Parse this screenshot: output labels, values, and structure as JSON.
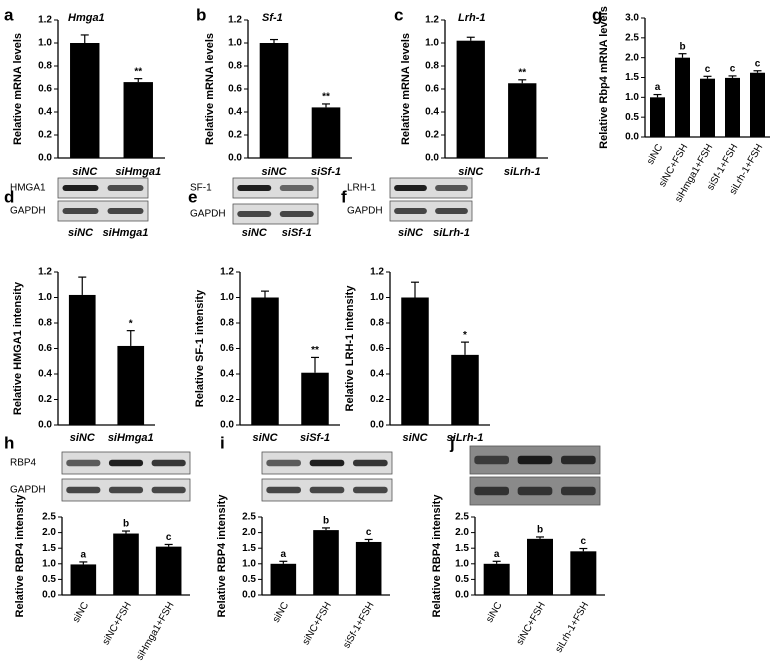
{
  "chart_data": [
    {
      "type": "bar",
      "panel": "a",
      "title": "Hmga1",
      "ylabel": "Relative mRNA levels",
      "categories": [
        "siNC",
        "siHmga1"
      ],
      "values": [
        1.0,
        0.66
      ],
      "errors": [
        0.07,
        0.03
      ],
      "annotations": [
        null,
        "**"
      ],
      "color": "#000000",
      "ylim": [
        0,
        1.2
      ],
      "yticks": [
        {
          "value": 0,
          "label": "0.0"
        },
        0.2,
        0.4,
        0.6,
        0.8,
        {
          "value": 1,
          "label": "1.0"
        },
        1.2
      ]
    },
    {
      "type": "bar",
      "panel": "b",
      "title": "Sf-1",
      "ylabel": "Relative mRNA levels",
      "categories": [
        "siNC",
        "siSf-1"
      ],
      "values": [
        1.0,
        0.44
      ],
      "errors": [
        0.03,
        0.03
      ],
      "annotations": [
        null,
        "**"
      ],
      "color": "#000000",
      "ylim": [
        0,
        1.2
      ],
      "yticks": [
        {
          "value": 0,
          "label": "0.0"
        },
        0.2,
        0.4,
        0.6,
        0.8,
        {
          "value": 1,
          "label": "1.0"
        },
        1.2
      ]
    },
    {
      "type": "bar",
      "panel": "c",
      "title": "Lrh-1",
      "ylabel": "Relative mRNA levels",
      "categories": [
        "siNC",
        "siLrh-1"
      ],
      "values": [
        1.02,
        0.65
      ],
      "errors": [
        0.03,
        0.03
      ],
      "annotations": [
        null,
        "**"
      ],
      "color": "#000000",
      "ylim": [
        0,
        1.2
      ],
      "yticks": [
        {
          "value": 0,
          "label": "0.0"
        },
        0.2,
        0.4,
        0.6,
        0.8,
        {
          "value": 1,
          "label": "1.0"
        },
        1.2
      ]
    },
    {
      "type": "bar",
      "panel": "g",
      "ylabel": "Relative Rbp4 mRNA levels",
      "categories": [
        "siNC",
        "siNC+FSH",
        "siHmga1+FSH",
        "siSf-1+FSH",
        "siLrh-1+FSH"
      ],
      "values": [
        1.0,
        2.0,
        1.47,
        1.49,
        1.62
      ],
      "errors": [
        0.07,
        0.1,
        0.06,
        0.05,
        0.05
      ],
      "annotations": [
        "a",
        "b",
        "c",
        "c",
        "c"
      ],
      "color": "#000000",
      "ylim": [
        0,
        3
      ],
      "yticks": [
        {
          "value": 0,
          "label": "0.0"
        },
        0.5,
        {
          "value": 1,
          "label": "1.0"
        },
        1.5,
        {
          "value": 2,
          "label": "2.0"
        },
        2.5,
        {
          "value": 3,
          "label": "3.0"
        }
      ]
    },
    {
      "type": "bar",
      "panel": "d",
      "blot_rows": [
        "HMGA1",
        "GAPDH"
      ],
      "blot_lanes": [
        "siNC",
        "siHmga1"
      ],
      "ylabel": "Relative HMGA1 intensity",
      "categories": [
        "siNC",
        "siHmga1"
      ],
      "values": [
        1.02,
        0.62
      ],
      "errors": [
        0.14,
        0.12
      ],
      "annotations": [
        null,
        "*"
      ],
      "color": "#000000",
      "ylim": [
        0,
        1.2
      ],
      "yticks": [
        {
          "value": 0,
          "label": "0.0"
        },
        0.2,
        0.4,
        0.6,
        0.8,
        {
          "value": 1,
          "label": "1.0"
        },
        1.2
      ]
    },
    {
      "type": "bar",
      "panel": "e",
      "blot_rows": [
        "SF-1",
        "GAPDH"
      ],
      "blot_lanes": [
        "siNC",
        "siSf-1"
      ],
      "ylabel": "Relative SF-1 intensity",
      "categories": [
        "siNC",
        "siSf-1"
      ],
      "values": [
        1.0,
        0.41
      ],
      "errors": [
        0.05,
        0.12
      ],
      "annotations": [
        null,
        "**"
      ],
      "color": "#000000",
      "ylim": [
        0,
        1.2
      ],
      "yticks": [
        {
          "value": 0,
          "label": "0.0"
        },
        0.2,
        0.4,
        0.6,
        0.8,
        {
          "value": 1,
          "label": "1.0"
        },
        1.2
      ]
    },
    {
      "type": "bar",
      "panel": "f",
      "blot_rows": [
        "LRH-1",
        "GAPDH"
      ],
      "blot_lanes": [
        "siNC",
        "siLrh-1"
      ],
      "ylabel": "Relative LRH-1 intensity",
      "categories": [
        "siNC",
        "siLrh-1"
      ],
      "values": [
        1.0,
        0.55
      ],
      "errors": [
        0.12,
        0.1
      ],
      "annotations": [
        null,
        "*"
      ],
      "color": "#000000",
      "ylim": [
        0,
        1.2
      ],
      "yticks": [
        {
          "value": 0,
          "label": "0.0"
        },
        0.2,
        0.4,
        0.6,
        0.8,
        {
          "value": 1,
          "label": "1.0"
        },
        1.2
      ]
    },
    {
      "type": "bar",
      "panel": "h",
      "blot_rows": [
        "RBP4",
        "GAPDH"
      ],
      "ylabel": "Relative RBP4 intensity",
      "categories": [
        "siNC",
        "siNC+FSH",
        "siHmga1+FSH"
      ],
      "values": [
        0.98,
        1.97,
        1.55
      ],
      "errors": [
        0.08,
        0.08,
        0.07
      ],
      "annotations": [
        "a",
        "b",
        "c"
      ],
      "color": "#000000",
      "ylim": [
        0,
        2.5
      ],
      "yticks": [
        {
          "value": 0,
          "label": "0.0"
        },
        0.5,
        {
          "value": 1,
          "label": "1.0"
        },
        1.5,
        {
          "value": 2,
          "label": "2.0"
        },
        2.5
      ]
    },
    {
      "type": "bar",
      "panel": "i",
      "ylabel": "Relative RBP4 intensity",
      "categories": [
        "siNC",
        "siNC+FSH",
        "siSf-1+FSH"
      ],
      "values": [
        1.0,
        2.08,
        1.7
      ],
      "errors": [
        0.08,
        0.07,
        0.08
      ],
      "annotations": [
        "a",
        "b",
        "c"
      ],
      "color": "#000000",
      "ylim": [
        0,
        2.5
      ],
      "yticks": [
        {
          "value": 0,
          "label": "0.0"
        },
        0.5,
        {
          "value": 1,
          "label": "1.0"
        },
        1.5,
        {
          "value": 2,
          "label": "2.0"
        },
        2.5
      ]
    },
    {
      "type": "bar",
      "panel": "j",
      "ylabel": "Relative RBP4 intensity",
      "categories": [
        "siNC",
        "siNC+FSH",
        "siLrh-1+FSH"
      ],
      "values": [
        1.0,
        1.8,
        1.4
      ],
      "errors": [
        0.08,
        0.06,
        0.09
      ],
      "annotations": [
        "a",
        "b",
        "c"
      ],
      "color": "#000000",
      "ylim": [
        0,
        2.5
      ],
      "yticks": [
        {
          "value": 0,
          "label": "0.0"
        },
        0.5,
        {
          "value": 1,
          "label": "1.0"
        },
        1.5,
        {
          "value": 2,
          "label": "2.0"
        },
        2.5
      ]
    }
  ]
}
